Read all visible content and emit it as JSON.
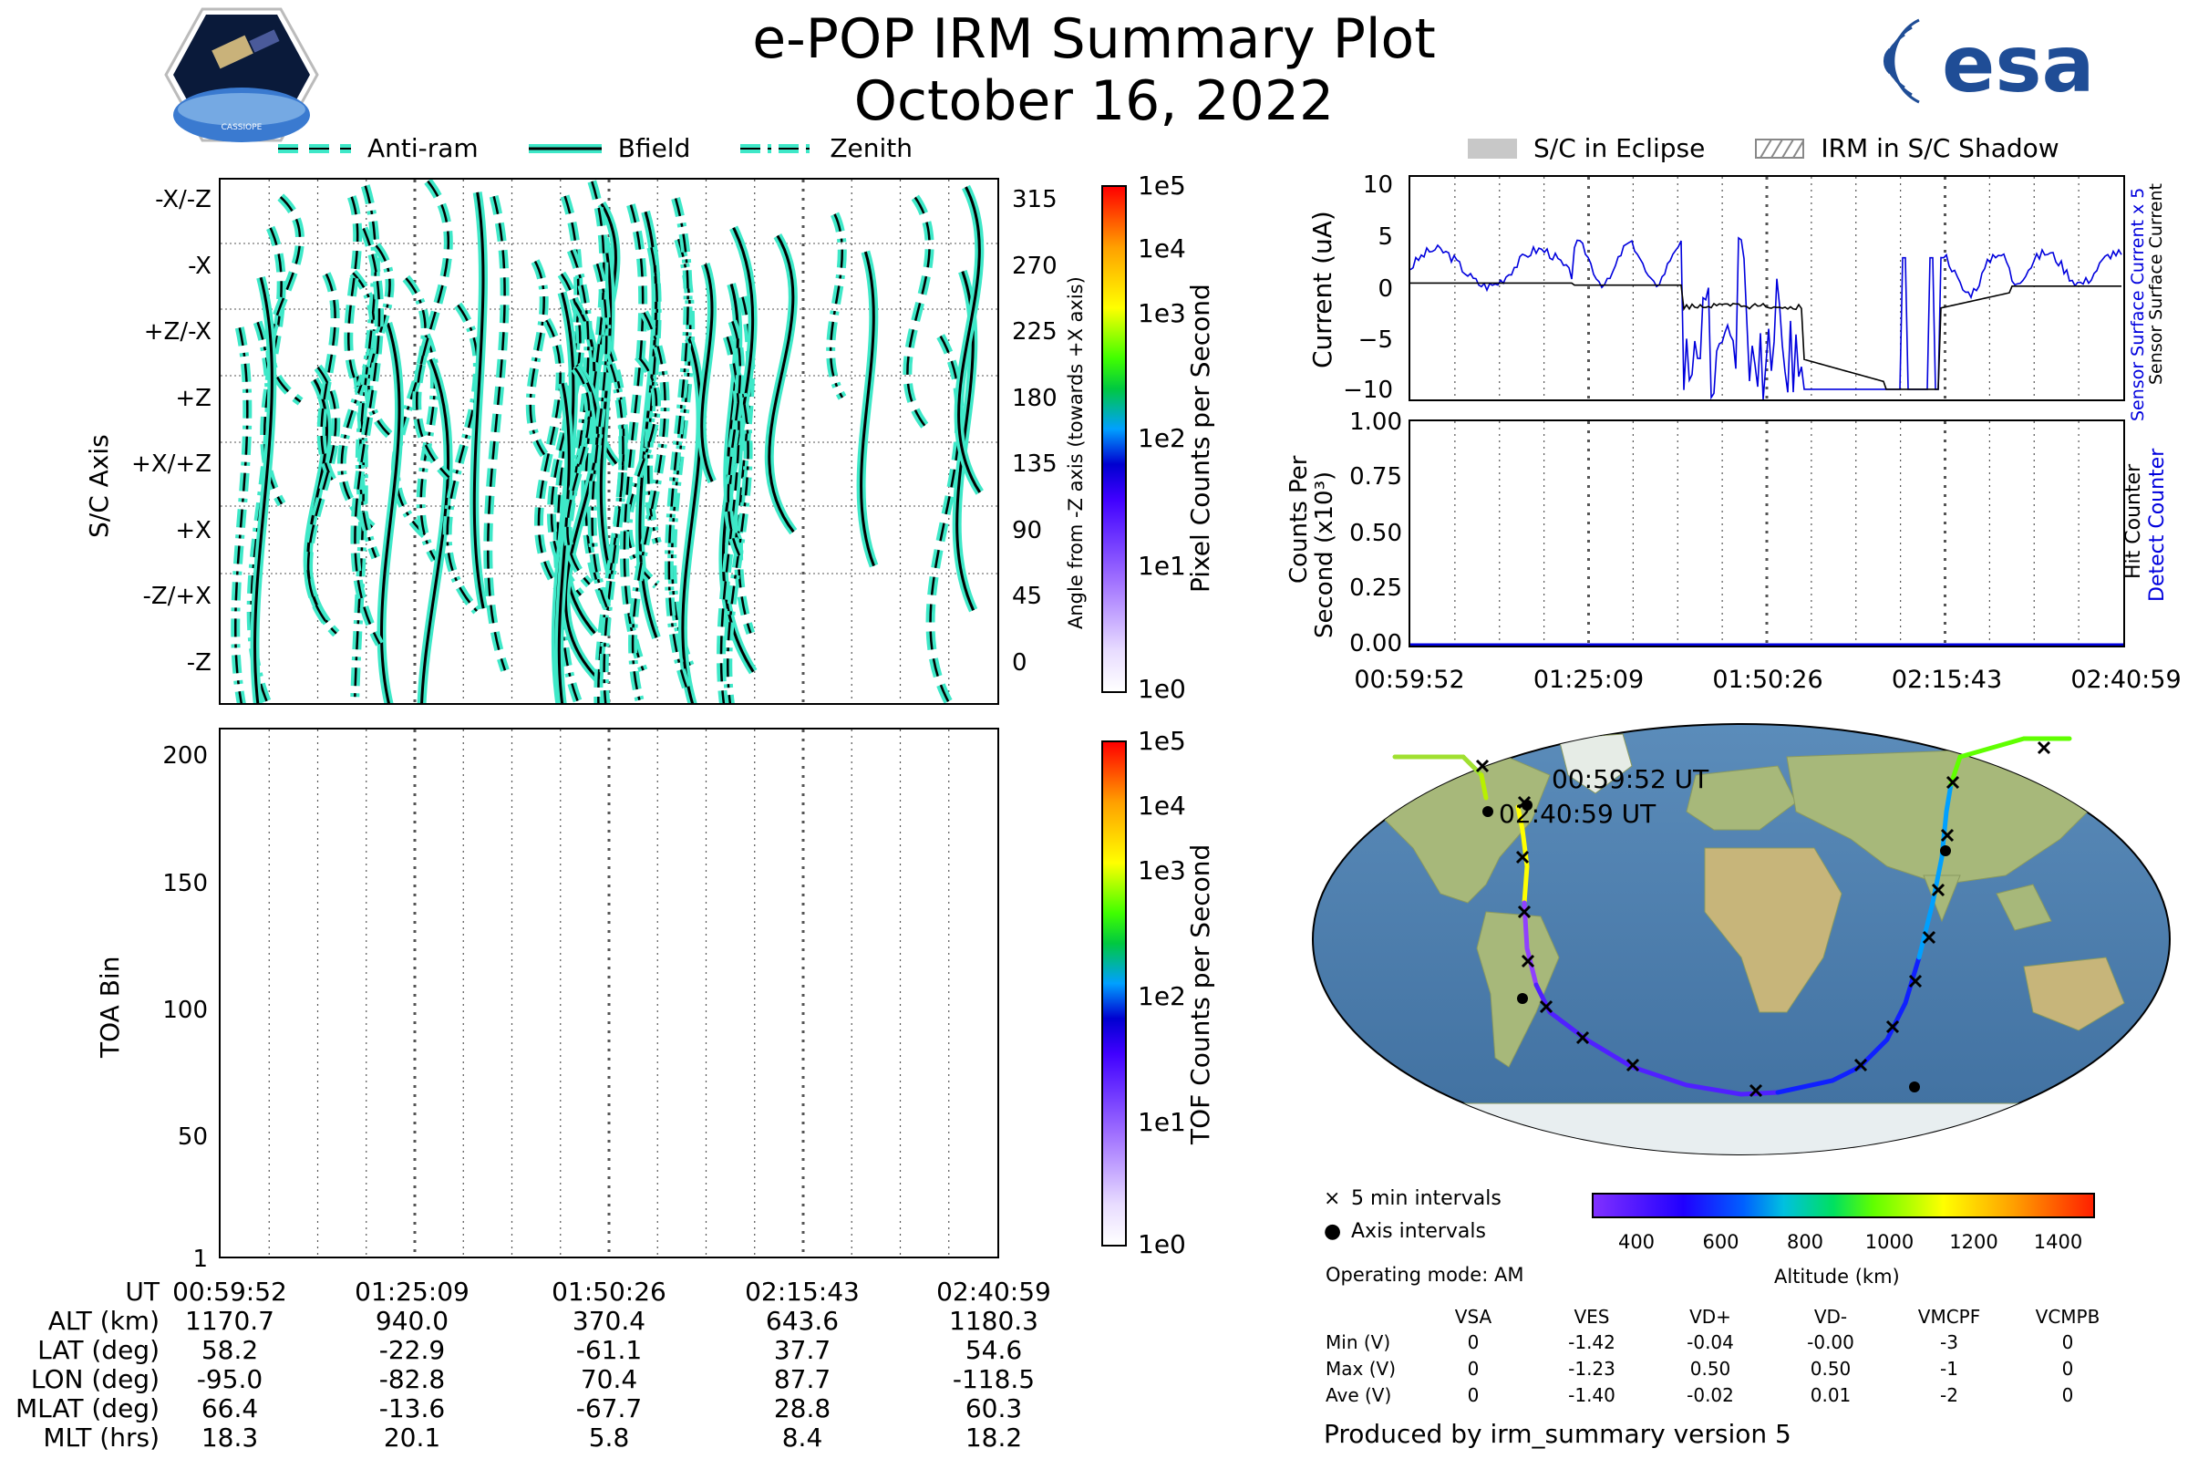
{
  "header": {
    "title": "e-POP IRM Summary Plot",
    "date": "October 16, 2022",
    "cassiope_logo_text": "CASSIOPE",
    "esa_logo_text": "esa"
  },
  "legend_top_left": [
    {
      "label": "Anti-ram",
      "style": "dashed"
    },
    {
      "label": "Bfield",
      "style": "solid"
    },
    {
      "label": "Zenith",
      "style": "dashdot"
    }
  ],
  "legend_top_right": [
    {
      "label": "S/C in Eclipse"
    },
    {
      "label": "IRM in S/C Shadow"
    }
  ],
  "colors": {
    "trace_fill": "#3ee8c8",
    "current_blue": "#0000dd",
    "grid": "#666666"
  },
  "chart_data": [
    {
      "type": "line",
      "name": "sc_axis_panel",
      "ylabel": "S/C Axis",
      "ylabel_right": "Angle from -Z axis (towards +X axis)",
      "ytick_labels": [
        "-X/-Z",
        "-X",
        "+Z/-X",
        "+Z",
        "+X/+Z",
        "+X",
        "-Z/+X",
        "-Z"
      ],
      "ytick_labels_right": [
        "315",
        "270",
        "225",
        "180",
        "135",
        "90",
        "45",
        "0"
      ],
      "ylim": [
        -15,
        345
      ],
      "colorbar": {
        "label": "Pixel Counts per Second",
        "ticks": [
          "1e0",
          "1e1",
          "1e2",
          "1e3",
          "1e4",
          "1e5"
        ],
        "scale": "log"
      }
    },
    {
      "type": "heatmap",
      "name": "toa_panel",
      "ylabel": "TOA Bin",
      "ytick_labels": [
        "200",
        "150",
        "100",
        "50",
        "1"
      ],
      "ylim": [
        1,
        210
      ],
      "colorbar": {
        "label": "TOF Counts per Second",
        "ticks": [
          "1e0",
          "1e1",
          "1e2",
          "1e3",
          "1e4",
          "1e5"
        ],
        "scale": "log"
      }
    },
    {
      "type": "line",
      "name": "current_panel",
      "ylabel": "Current (uA)",
      "ylabel_right_1": "Sensor Surface Current x 5",
      "ylabel_right_2": "Sensor Surface Current",
      "ytick_labels": [
        "10",
        "5",
        "0",
        "−5",
        "−10"
      ],
      "ylim": [
        -11,
        11
      ],
      "series": [
        {
          "name": "Sensor Surface Current x 5",
          "color": "#0000dd"
        },
        {
          "name": "Sensor Surface Current",
          "color": "#000000"
        }
      ]
    },
    {
      "type": "line",
      "name": "counts_panel",
      "ylabel": "Counts Per Second (x10³)",
      "ylabel_line1": "Counts Per",
      "ylabel_line2": "Second (x10³)",
      "ylabel_right_1": "Detect Counter",
      "ylabel_right_2": "Hit Counter",
      "ytick_labels": [
        "1.00",
        "0.75",
        "0.50",
        "0.25",
        "0.00"
      ],
      "ylim": [
        0,
        1
      ],
      "xtick_labels": [
        "00:59:52",
        "01:25:09",
        "01:50:26",
        "02:15:43",
        "02:40:59"
      ]
    }
  ],
  "time_table": {
    "rows": [
      {
        "label": "UT",
        "values": [
          "00:59:52",
          "01:25:09",
          "01:50:26",
          "02:15:43",
          "02:40:59"
        ]
      },
      {
        "label": "ALT (km)",
        "values": [
          "1170.7",
          "940.0",
          "370.4",
          "643.6",
          "1180.3"
        ]
      },
      {
        "label": "LAT (deg)",
        "values": [
          "58.2",
          "-22.9",
          "-61.1",
          "37.7",
          "54.6"
        ]
      },
      {
        "label": "LON (deg)",
        "values": [
          "-95.0",
          "-82.8",
          "70.4",
          "87.7",
          "-118.5"
        ]
      },
      {
        "label": "MLAT (deg)",
        "values": [
          "66.4",
          "-13.6",
          "-67.7",
          "28.8",
          "60.3"
        ]
      },
      {
        "label": "MLT (hrs)",
        "values": [
          "18.3",
          "20.1",
          "5.8",
          "8.4",
          "18.2"
        ]
      }
    ]
  },
  "map": {
    "start_label": "00:59:52 UT",
    "end_label": "02:40:59 UT",
    "legend_5min": "5 min intervals",
    "legend_axis": "Axis intervals",
    "altitude_label": "Altitude (km)",
    "altitude_ticks": [
      "400",
      "600",
      "800",
      "1000",
      "1200",
      "1400"
    ]
  },
  "operating_mode": "Operating mode: AM",
  "voltage_table": {
    "headers": [
      "VSA",
      "VES",
      "VD+",
      "VD-",
      "VMCPF",
      "VCMPB"
    ],
    "rows": [
      {
        "label": "Min (V)",
        "values": [
          "0",
          "-1.42",
          "-0.04",
          "-0.00",
          "-3",
          "0"
        ]
      },
      {
        "label": "Max (V)",
        "values": [
          "0",
          "-1.23",
          "0.50",
          "0.50",
          "-1",
          "0"
        ]
      },
      {
        "label": "Ave (V)",
        "values": [
          "0",
          "-1.40",
          "-0.02",
          "0.01",
          "-2",
          "0"
        ]
      }
    ]
  },
  "footer": "Produced by irm_summary version 5"
}
